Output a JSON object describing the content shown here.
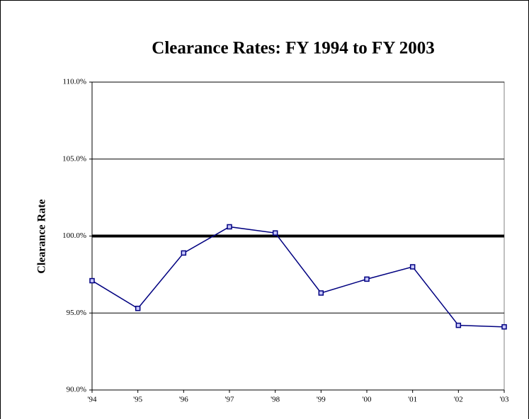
{
  "chart_data": {
    "type": "line",
    "title": "Clearance Rates: FY 1994 to FY 2003",
    "y_label": "Clearance Rate",
    "categories": [
      "'94",
      "'95",
      "'96",
      "'97",
      "'98",
      "'99",
      "'00",
      "'01",
      "'02",
      "'03"
    ],
    "values": [
      97.1,
      95.3,
      98.9,
      100.6,
      100.2,
      96.3,
      97.2,
      98.0,
      94.2,
      94.1
    ],
    "color": "#000080",
    "ylim": [
      90,
      110
    ],
    "yticks": [
      {
        "value": 90,
        "label": "90.0%"
      },
      {
        "value": 95,
        "label": "95.0%"
      },
      {
        "value": 100,
        "label": "100.0%"
      },
      {
        "value": 105,
        "label": "105.0%"
      },
      {
        "value": 110,
        "label": "110.0%"
      }
    ],
    "reference_line": 100,
    "grid": true
  }
}
